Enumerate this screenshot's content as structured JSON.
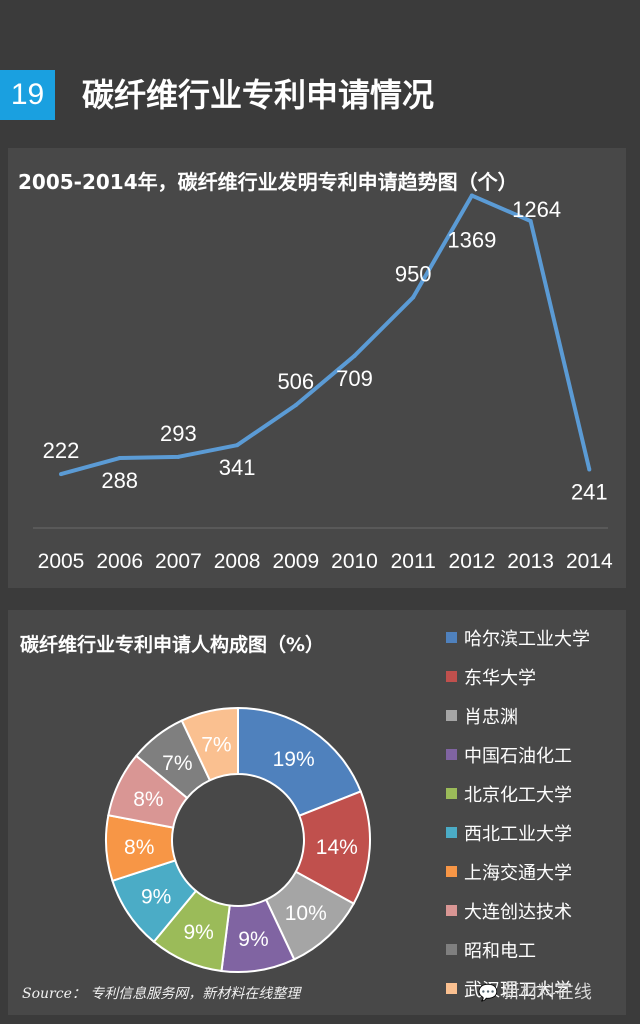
{
  "header": {
    "page_number": "19",
    "title": "碳纤维行业专利申请情况"
  },
  "chart_data": [
    {
      "type": "line",
      "title": "2005-2014年，碳纤维行业发明专利申请趋势图（个）",
      "categories": [
        "2005",
        "2006",
        "2007",
        "2008",
        "2009",
        "2010",
        "2011",
        "2012",
        "2013",
        "2014"
      ],
      "values": [
        222,
        288,
        293,
        341,
        506,
        709,
        950,
        1369,
        1264,
        241
      ],
      "xlabel": "",
      "ylabel": "",
      "ylim": [
        0,
        1400
      ],
      "grid": false,
      "legend": "none",
      "color": "#5b9bd5"
    },
    {
      "type": "pie",
      "title": "碳纤维行业专利申请人构成图（%）",
      "categories": [
        "哈尔滨工业大学",
        "东华大学",
        "肖忠渊",
        "中国石油化工",
        "北京化工大学",
        "西北工业大学",
        "上海交通大学",
        "大连创达技术",
        "昭和电工",
        "武汉理工大学"
      ],
      "values": [
        19,
        14,
        10,
        9,
        9,
        9,
        8,
        8,
        7,
        7
      ],
      "labels": [
        "19%",
        "14%",
        "10%",
        "9%",
        "9%",
        "9%",
        "8%",
        "8%",
        "7%",
        "7%"
      ],
      "colors": [
        "#4f81bd",
        "#c0504d",
        "#a5a5a5",
        "#8064a2",
        "#9bbb59",
        "#4bacc6",
        "#f79646",
        "#d99694",
        "#7f7f7f",
        "#fac090"
      ],
      "legend": "right",
      "donut": true
    }
  ],
  "footer": {
    "source": "Source： 专利信息服务网，新材料在线整理",
    "watermark": "新材料在线"
  }
}
